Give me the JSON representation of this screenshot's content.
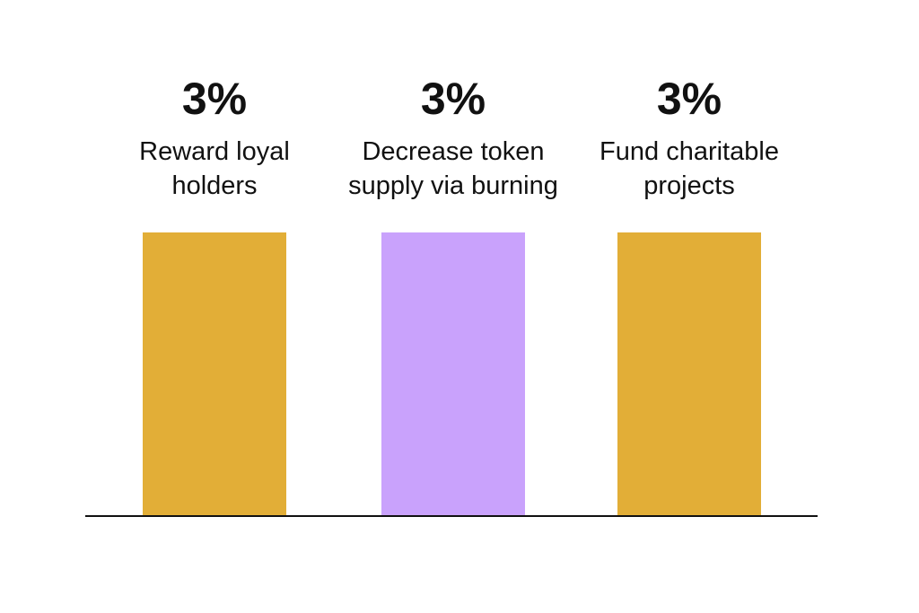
{
  "chart_data": {
    "type": "bar",
    "categories": [
      [
        "Reward loyal",
        "holders"
      ],
      [
        "Decrease token",
        "supply via burning"
      ],
      [
        "Fund charitable",
        "projects"
      ]
    ],
    "values": [
      3,
      3,
      3
    ],
    "value_labels": [
      "3%",
      "3%",
      "3%"
    ],
    "colors": [
      "#E2AE37",
      "#C9A2FC",
      "#E2AE37"
    ],
    "title": "",
    "xlabel": "",
    "ylabel": "",
    "ylim": [
      0,
      3
    ],
    "grid": false,
    "legend": "none"
  }
}
